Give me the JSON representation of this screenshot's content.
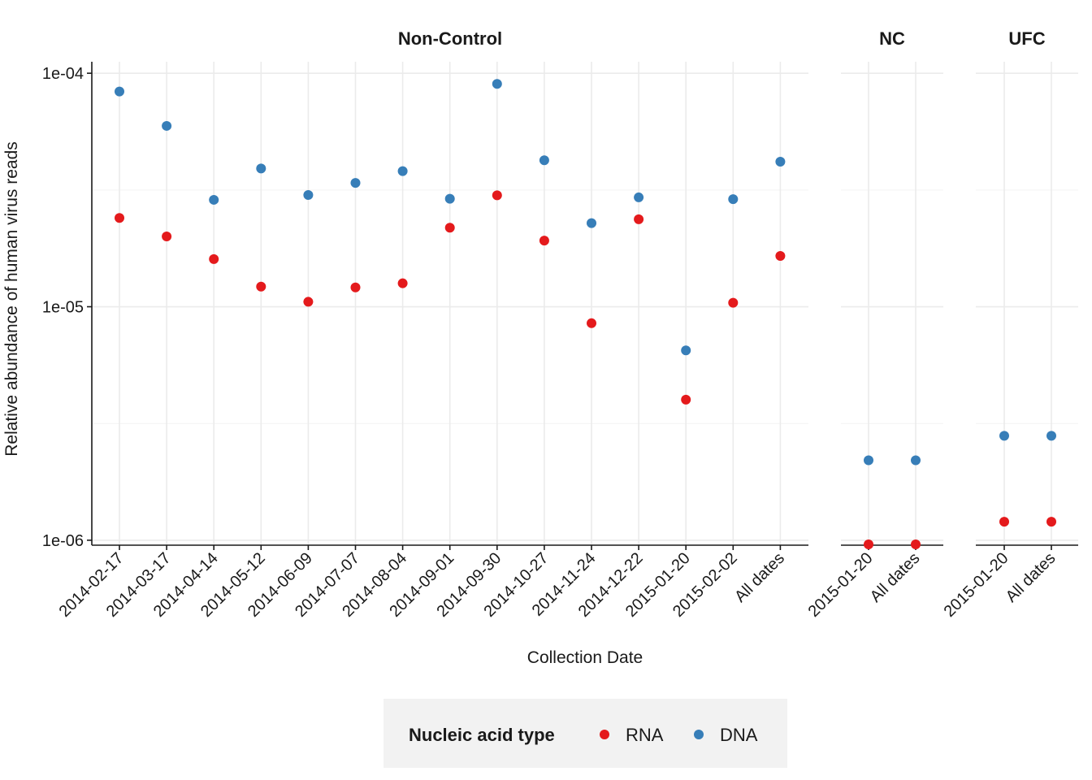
{
  "chart_data": {
    "type": "scatter",
    "ylabel": "Relative abundance of human virus reads",
    "xlabel": "Collection Date",
    "yscale": "log10",
    "ylim": [
      9.6e-07,
      0.000112
    ],
    "y_ticks": [
      1e-06,
      1e-05,
      0.0001
    ],
    "y_tick_labels": [
      "1e-06",
      "1e-05",
      "1e-04"
    ],
    "grid": true,
    "legend": {
      "title": "Nucleic acid type",
      "placement": "bottom",
      "entries": [
        {
          "name": "RNA",
          "color": "#e41a1c"
        },
        {
          "name": "DNA",
          "color": "#377eb8"
        }
      ]
    },
    "facets": [
      {
        "title": "Non-Control",
        "categories": [
          "2014-02-17",
          "2014-03-17",
          "2014-04-14",
          "2014-05-12",
          "2014-06-09",
          "2014-07-07",
          "2014-08-04",
          "2014-09-01",
          "2014-09-30",
          "2014-10-27",
          "2014-11-24",
          "2014-12-22",
          "2015-01-20",
          "2015-02-02",
          "All dates"
        ],
        "series": [
          {
            "name": "RNA",
            "values": [
              2.4e-05,
              2e-05,
              1.6e-05,
              1.22e-05,
              1.05e-05,
              1.21e-05,
              1.26e-05,
              2.18e-05,
              3e-05,
              1.92e-05,
              8.5e-06,
              2.37e-05,
              4e-06,
              1.04e-05,
              1.65e-05
            ]
          },
          {
            "name": "DNA",
            "values": [
              8.35e-05,
              5.95e-05,
              2.87e-05,
              3.91e-05,
              3.01e-05,
              3.39e-05,
              3.81e-05,
              2.9e-05,
              9e-05,
              4.24e-05,
              2.28e-05,
              2.94e-05,
              6.5e-06,
              2.89e-05,
              4.18e-05
            ]
          }
        ]
      },
      {
        "title": "NC",
        "categories": [
          "2015-01-20",
          "All dates"
        ],
        "series": [
          {
            "name": "RNA",
            "values": [
              9.6e-07,
              9.6e-07
            ]
          },
          {
            "name": "DNA",
            "values": [
              2.2e-06,
              2.2e-06
            ]
          }
        ]
      },
      {
        "title": "UFC",
        "categories": [
          "2015-01-20",
          "All dates"
        ],
        "series": [
          {
            "name": "RNA",
            "values": [
              1.2e-06,
              1.2e-06
            ]
          },
          {
            "name": "DNA",
            "values": [
              2.8e-06,
              2.8e-06
            ]
          }
        ]
      }
    ]
  }
}
